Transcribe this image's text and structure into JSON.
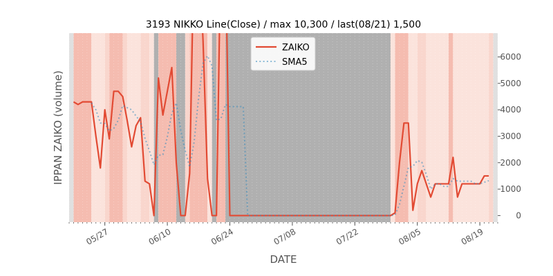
{
  "chart_data": {
    "type": "line",
    "title": "3193 NIKKO Line(Close) / max 10,300 / last(08/21) 1,500",
    "xlabel": "DATE",
    "ylabel": "IPPAN ZAIKO (volume)",
    "ylim": [
      -250,
      6900
    ],
    "xlim": [
      "2024-05-19",
      "2024-08-23"
    ],
    "y_ticks": [
      0,
      1000,
      2000,
      3000,
      4000,
      5000,
      6000
    ],
    "x_ticks": [
      {
        "date": "2024-05-27",
        "label": "05/27"
      },
      {
        "date": "2024-06-10",
        "label": "06/10"
      },
      {
        "date": "2024-06-24",
        "label": "06/24"
      },
      {
        "date": "2024-07-08",
        "label": "07/08"
      },
      {
        "date": "2024-07-22",
        "label": "07/22"
      },
      {
        "date": "2024-08-05",
        "label": "08/05"
      },
      {
        "date": "2024-08-19",
        "label": "08/19"
      }
    ],
    "legend_position": "top-center",
    "grid": false,
    "series": [
      {
        "name": "ZAIKO",
        "color": "#e24a33",
        "style": "solid",
        "points": [
          [
            "2024-05-20",
            4300
          ],
          [
            "2024-05-21",
            4200
          ],
          [
            "2024-05-22",
            4300
          ],
          [
            "2024-05-23",
            4300
          ],
          [
            "2024-05-24",
            4300
          ],
          [
            "2024-05-25",
            3000
          ],
          [
            "2024-05-26",
            1800
          ],
          [
            "2024-05-27",
            4000
          ],
          [
            "2024-05-28",
            2900
          ],
          [
            "2024-05-29",
            4700
          ],
          [
            "2024-05-30",
            4700
          ],
          [
            "2024-05-31",
            4500
          ],
          [
            "2024-06-01",
            3600
          ],
          [
            "2024-06-02",
            2600
          ],
          [
            "2024-06-03",
            3400
          ],
          [
            "2024-06-04",
            3700
          ],
          [
            "2024-06-05",
            1300
          ],
          [
            "2024-06-06",
            1200
          ],
          [
            "2024-06-07",
            0
          ],
          [
            "2024-06-08",
            5200
          ],
          [
            "2024-06-09",
            3800
          ],
          [
            "2024-06-10",
            4700
          ],
          [
            "2024-06-11",
            5600
          ],
          [
            "2024-06-12",
            2000
          ],
          [
            "2024-06-13",
            0
          ],
          [
            "2024-06-14",
            0
          ],
          [
            "2024-06-15",
            1600
          ],
          [
            "2024-06-16",
            10300
          ],
          [
            "2024-06-17",
            10300
          ],
          [
            "2024-06-18",
            6600
          ],
          [
            "2024-06-19",
            1400
          ],
          [
            "2024-06-20",
            0
          ],
          [
            "2024-06-21",
            0
          ],
          [
            "2024-06-22",
            10300
          ],
          [
            "2024-06-23",
            10300
          ],
          [
            "2024-06-24",
            0
          ],
          [
            "2024-06-25",
            0
          ],
          [
            "2024-06-26",
            0
          ],
          [
            "2024-06-27",
            0
          ],
          [
            "2024-06-28",
            0
          ],
          [
            "2024-06-29",
            0
          ],
          [
            "2024-06-30",
            0
          ],
          [
            "2024-07-01",
            0
          ],
          [
            "2024-07-02",
            0
          ],
          [
            "2024-07-03",
            0
          ],
          [
            "2024-07-04",
            0
          ],
          [
            "2024-07-05",
            0
          ],
          [
            "2024-07-06",
            0
          ],
          [
            "2024-07-07",
            0
          ],
          [
            "2024-07-08",
            0
          ],
          [
            "2024-07-09",
            0
          ],
          [
            "2024-07-10",
            0
          ],
          [
            "2024-07-11",
            0
          ],
          [
            "2024-07-12",
            0
          ],
          [
            "2024-07-13",
            0
          ],
          [
            "2024-07-14",
            0
          ],
          [
            "2024-07-15",
            0
          ],
          [
            "2024-07-16",
            0
          ],
          [
            "2024-07-17",
            0
          ],
          [
            "2024-07-18",
            0
          ],
          [
            "2024-07-19",
            0
          ],
          [
            "2024-07-20",
            0
          ],
          [
            "2024-07-21",
            0
          ],
          [
            "2024-07-22",
            0
          ],
          [
            "2024-07-23",
            0
          ],
          [
            "2024-07-24",
            0
          ],
          [
            "2024-07-25",
            0
          ],
          [
            "2024-07-26",
            0
          ],
          [
            "2024-07-27",
            0
          ],
          [
            "2024-07-28",
            0
          ],
          [
            "2024-07-29",
            0
          ],
          [
            "2024-07-30",
            0
          ],
          [
            "2024-07-31",
            100
          ],
          [
            "2024-08-01",
            2000
          ],
          [
            "2024-08-02",
            3500
          ],
          [
            "2024-08-03",
            3500
          ],
          [
            "2024-08-04",
            200
          ],
          [
            "2024-08-05",
            1200
          ],
          [
            "2024-08-06",
            1700
          ],
          [
            "2024-08-07",
            1200
          ],
          [
            "2024-08-08",
            700
          ],
          [
            "2024-08-09",
            1200
          ],
          [
            "2024-08-10",
            1200
          ],
          [
            "2024-08-11",
            1200
          ],
          [
            "2024-08-12",
            1200
          ],
          [
            "2024-08-13",
            2200
          ],
          [
            "2024-08-14",
            700
          ],
          [
            "2024-08-15",
            1200
          ],
          [
            "2024-08-16",
            1200
          ],
          [
            "2024-08-17",
            1200
          ],
          [
            "2024-08-18",
            1200
          ],
          [
            "2024-08-19",
            1200
          ],
          [
            "2024-08-20",
            1500
          ],
          [
            "2024-08-21",
            1500
          ]
        ]
      },
      {
        "name": "SMA5",
        "color": "#348abd",
        "style": "dotted",
        "points": [
          [
            "2024-05-24",
            4260
          ],
          [
            "2024-05-25",
            4000
          ],
          [
            "2024-05-26",
            3500
          ],
          [
            "2024-05-27",
            3480
          ],
          [
            "2024-05-28",
            3200
          ],
          [
            "2024-05-29",
            3300
          ],
          [
            "2024-05-30",
            3600
          ],
          [
            "2024-05-31",
            4160
          ],
          [
            "2024-06-01",
            4080
          ],
          [
            "2024-06-02",
            4000
          ],
          [
            "2024-06-03",
            3760
          ],
          [
            "2024-06-04",
            3560
          ],
          [
            "2024-06-05",
            2920
          ],
          [
            "2024-06-06",
            2440
          ],
          [
            "2024-06-07",
            1920
          ],
          [
            "2024-06-08",
            2280
          ],
          [
            "2024-06-09",
            2300
          ],
          [
            "2024-06-10",
            2980
          ],
          [
            "2024-06-11",
            3860
          ],
          [
            "2024-06-12",
            4260
          ],
          [
            "2024-06-13",
            3220
          ],
          [
            "2024-06-14",
            2460
          ],
          [
            "2024-06-15",
            1840
          ],
          [
            "2024-06-16",
            2780
          ],
          [
            "2024-06-17",
            4440
          ],
          [
            "2024-06-18",
            5760
          ],
          [
            "2024-06-19",
            6040
          ],
          [
            "2024-06-20",
            5660
          ],
          [
            "2024-06-21",
            3600
          ],
          [
            "2024-06-22",
            3660
          ],
          [
            "2024-06-23",
            4200
          ],
          [
            "2024-06-24",
            4120
          ],
          [
            "2024-06-25",
            4120
          ],
          [
            "2024-06-26",
            4120
          ],
          [
            "2024-06-27",
            4120
          ],
          [
            "2024-06-28",
            0
          ],
          [
            "2024-06-29",
            0
          ],
          [
            "2024-06-30",
            0
          ],
          [
            "2024-07-01",
            0
          ],
          [
            "2024-07-02",
            0
          ],
          [
            "2024-07-03",
            0
          ],
          [
            "2024-07-04",
            0
          ],
          [
            "2024-07-05",
            0
          ],
          [
            "2024-07-06",
            0
          ],
          [
            "2024-07-07",
            0
          ],
          [
            "2024-07-08",
            0
          ],
          [
            "2024-07-09",
            0
          ],
          [
            "2024-07-10",
            0
          ],
          [
            "2024-07-11",
            0
          ],
          [
            "2024-07-12",
            0
          ],
          [
            "2024-07-13",
            0
          ],
          [
            "2024-07-14",
            0
          ],
          [
            "2024-07-15",
            0
          ],
          [
            "2024-07-16",
            0
          ],
          [
            "2024-07-17",
            0
          ],
          [
            "2024-07-18",
            0
          ],
          [
            "2024-07-19",
            0
          ],
          [
            "2024-07-20",
            0
          ],
          [
            "2024-07-21",
            0
          ],
          [
            "2024-07-22",
            0
          ],
          [
            "2024-07-23",
            0
          ],
          [
            "2024-07-24",
            0
          ],
          [
            "2024-07-25",
            0
          ],
          [
            "2024-07-26",
            0
          ],
          [
            "2024-07-27",
            0
          ],
          [
            "2024-07-28",
            0
          ],
          [
            "2024-07-29",
            0
          ],
          [
            "2024-07-30",
            0
          ],
          [
            "2024-07-31",
            20
          ],
          [
            "2024-08-01",
            420
          ],
          [
            "2024-08-02",
            1120
          ],
          [
            "2024-08-03",
            1820
          ],
          [
            "2024-08-04",
            1860
          ],
          [
            "2024-08-05",
            2080
          ],
          [
            "2024-08-06",
            2020
          ],
          [
            "2024-08-07",
            1560
          ],
          [
            "2024-08-08",
            1000
          ],
          [
            "2024-08-09",
            1200
          ],
          [
            "2024-08-10",
            1200
          ],
          [
            "2024-08-11",
            1100
          ],
          [
            "2024-08-12",
            1100
          ],
          [
            "2024-08-13",
            1400
          ],
          [
            "2024-08-14",
            1300
          ],
          [
            "2024-08-15",
            1300
          ],
          [
            "2024-08-16",
            1300
          ],
          [
            "2024-08-17",
            1300
          ],
          [
            "2024-08-18",
            1200
          ],
          [
            "2024-08-19",
            1200
          ],
          [
            "2024-08-20",
            1260
          ],
          [
            "2024-08-21",
            1320
          ]
        ]
      }
    ],
    "background_bands": [
      {
        "start": "2024-05-19",
        "end": "2024-05-20",
        "color": "#e0e0e0"
      },
      {
        "start": "2024-05-20",
        "end": "2024-05-24",
        "color": "#f5bcb0"
      },
      {
        "start": "2024-05-24",
        "end": "2024-05-27",
        "color": "#fbe3dc"
      },
      {
        "start": "2024-05-27",
        "end": "2024-05-28",
        "color": "#f9d6cd"
      },
      {
        "start": "2024-05-28",
        "end": "2024-05-31",
        "color": "#f5bcb0"
      },
      {
        "start": "2024-05-31",
        "end": "2024-06-01",
        "color": "#f9d6cd"
      },
      {
        "start": "2024-06-01",
        "end": "2024-06-04",
        "color": "#fbe3dc"
      },
      {
        "start": "2024-06-04",
        "end": "2024-06-06",
        "color": "#f9d6cd"
      },
      {
        "start": "2024-06-06",
        "end": "2024-06-07",
        "color": "#fbe3dc"
      },
      {
        "start": "2024-06-07",
        "end": "2024-06-08",
        "color": "#b0b0b0"
      },
      {
        "start": "2024-06-08",
        "end": "2024-06-12",
        "color": "#f5bcb0"
      },
      {
        "start": "2024-06-12",
        "end": "2024-06-14",
        "color": "#b0b0b0"
      },
      {
        "start": "2024-06-14",
        "end": "2024-06-15",
        "color": "#f9d6cd"
      },
      {
        "start": "2024-06-15",
        "end": "2024-06-19",
        "color": "#f5bcb0"
      },
      {
        "start": "2024-06-19",
        "end": "2024-06-20",
        "color": "#fbe3dc"
      },
      {
        "start": "2024-06-20",
        "end": "2024-06-21",
        "color": "#b0b0b0"
      },
      {
        "start": "2024-06-21",
        "end": "2024-06-23",
        "color": "#f5bcb0"
      },
      {
        "start": "2024-06-23",
        "end": "2024-07-30",
        "color": "#b0b0b0"
      },
      {
        "start": "2024-07-30",
        "end": "2024-07-31",
        "color": "#fbe3dc"
      },
      {
        "start": "2024-07-31",
        "end": "2024-08-03",
        "color": "#f5bcb0"
      },
      {
        "start": "2024-08-03",
        "end": "2024-08-05",
        "color": "#fbe3dc"
      },
      {
        "start": "2024-08-05",
        "end": "2024-08-07",
        "color": "#f9d6cd"
      },
      {
        "start": "2024-08-07",
        "end": "2024-08-12",
        "color": "#fbe3dc"
      },
      {
        "start": "2024-08-12",
        "end": "2024-08-13",
        "color": "#f5bcb0"
      },
      {
        "start": "2024-08-13",
        "end": "2024-08-21",
        "color": "#fbe3dc"
      },
      {
        "start": "2024-08-21",
        "end": "2024-08-22",
        "color": "#f9d6cd"
      },
      {
        "start": "2024-08-22",
        "end": "2024-08-23",
        "color": "#e0e0e0"
      }
    ]
  }
}
